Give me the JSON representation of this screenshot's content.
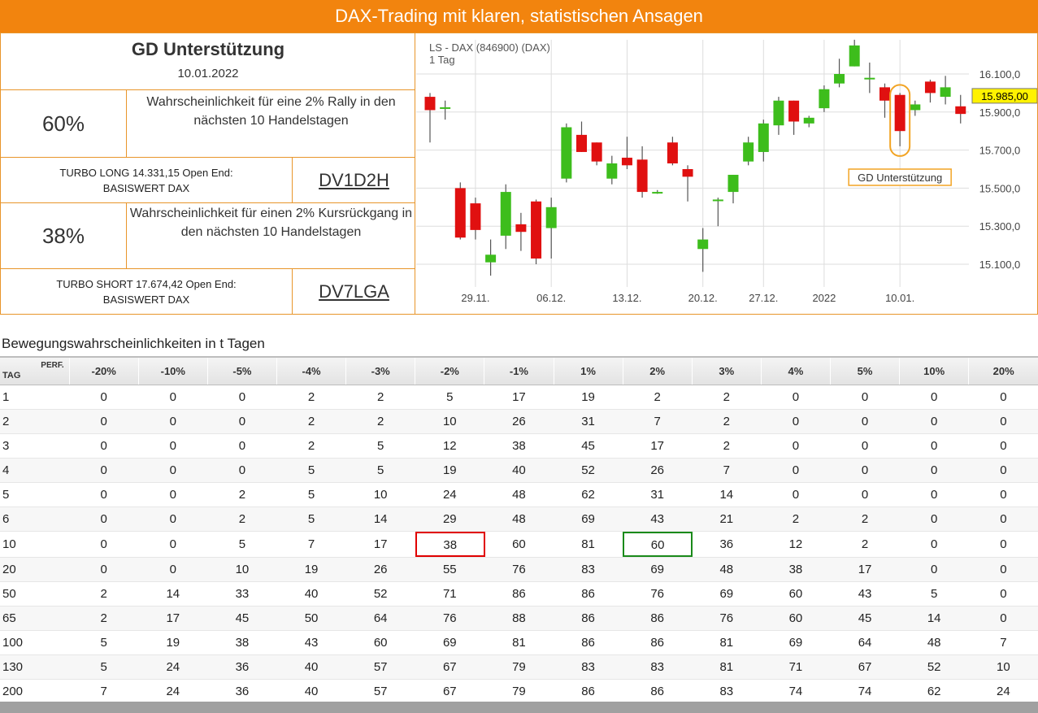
{
  "banner": {
    "title": "DAX-Trading mit klaren, statistischen Ansagen"
  },
  "panel": {
    "title": "GD Unterstützung",
    "date": "10.01.2022",
    "long": {
      "percent": "60%",
      "description": "Wahrscheinlichkeit für eine 2% Rally in den nächsten 10 Handelstagen",
      "product_line1": "TURBO LONG 14.331,15 Open End:",
      "product_line2": "BASISWERT DAX",
      "wkn": "DV1D2H"
    },
    "short": {
      "percent": "38%",
      "description": "Wahrscheinlichkeit für einen 2% Kursrückgang in den nächsten 10 Handelstagen",
      "product_line1": "TURBO SHORT 17.674,42 Open End:",
      "product_line2": "BASISWERT DAX",
      "wkn": "DV7LGA"
    }
  },
  "chart_data": {
    "type": "candlestick",
    "title": "LS - DAX (846900) (DAX)",
    "subtitle": "1 Tag",
    "ylim": [
      14950,
      16280
    ],
    "y_ticks": [
      15100,
      15300,
      15500,
      15700,
      15900,
      16100
    ],
    "y_tick_labels": [
      "15.100,0",
      "15.300,0",
      "15.500,0",
      "15.700,0",
      "15.900,0",
      "16.100,0"
    ],
    "x_tick_labels": [
      {
        "label": "29.11.",
        "index": 3
      },
      {
        "label": "06.12.",
        "index": 8
      },
      {
        "label": "13.12.",
        "index": 13
      },
      {
        "label": "20.12.",
        "index": 18
      },
      {
        "label": "27.12.",
        "index": 22
      },
      {
        "label": "2022",
        "index": 26
      },
      {
        "label": "10.01.",
        "index": 31
      }
    ],
    "current_price_label": "15.985,00",
    "current_price": 15985,
    "annotation": {
      "label": "GD Unterstützung",
      "index": 31
    },
    "colors": {
      "up": "#3dbd1c",
      "down": "#e01010",
      "annotation": "#f2a424",
      "price_tag": "#fff200"
    },
    "candles": [
      {
        "o": 15980,
        "h": 16000,
        "l": 15740,
        "c": 15910
      },
      {
        "o": 15925,
        "h": 15960,
        "l": 15860,
        "c": 15925
      },
      {
        "o": 15500,
        "h": 15530,
        "l": 15230,
        "c": 15240
      },
      {
        "o": 15420,
        "h": 15450,
        "l": 15230,
        "c": 15280
      },
      {
        "o": 15110,
        "h": 15230,
        "l": 15040,
        "c": 15150
      },
      {
        "o": 15250,
        "h": 15520,
        "l": 15180,
        "c": 15480
      },
      {
        "o": 15310,
        "h": 15370,
        "l": 15170,
        "c": 15270
      },
      {
        "o": 15430,
        "h": 15440,
        "l": 15100,
        "c": 15130
      },
      {
        "o": 15290,
        "h": 15450,
        "l": 15130,
        "c": 15400
      },
      {
        "o": 15550,
        "h": 15840,
        "l": 15530,
        "c": 15820
      },
      {
        "o": 15780,
        "h": 15850,
        "l": 15690,
        "c": 15690
      },
      {
        "o": 15740,
        "h": 15740,
        "l": 15620,
        "c": 15640
      },
      {
        "o": 15550,
        "h": 15670,
        "l": 15520,
        "c": 15630
      },
      {
        "o": 15660,
        "h": 15770,
        "l": 15600,
        "c": 15620
      },
      {
        "o": 15650,
        "h": 15720,
        "l": 15450,
        "c": 15480
      },
      {
        "o": 15480,
        "h": 15490,
        "l": 15470,
        "c": 15480
      },
      {
        "o": 15740,
        "h": 15770,
        "l": 15620,
        "c": 15630
      },
      {
        "o": 15600,
        "h": 15620,
        "l": 15430,
        "c": 15560
      },
      {
        "o": 15180,
        "h": 15290,
        "l": 15060,
        "c": 15230
      },
      {
        "o": 15440,
        "h": 15450,
        "l": 15300,
        "c": 15440
      },
      {
        "o": 15480,
        "h": 15570,
        "l": 15420,
        "c": 15570
      },
      {
        "o": 15640,
        "h": 15770,
        "l": 15620,
        "c": 15740
      },
      {
        "o": 15690,
        "h": 15860,
        "l": 15640,
        "c": 15840
      },
      {
        "o": 15830,
        "h": 15980,
        "l": 15780,
        "c": 15960
      },
      {
        "o": 15960,
        "h": 15960,
        "l": 15780,
        "c": 15850
      },
      {
        "o": 15840,
        "h": 15880,
        "l": 15820,
        "c": 15870
      },
      {
        "o": 15920,
        "h": 16040,
        "l": 15900,
        "c": 16020
      },
      {
        "o": 16050,
        "h": 16180,
        "l": 16030,
        "c": 16100
      },
      {
        "o": 16140,
        "h": 16280,
        "l": 16140,
        "c": 16250
      },
      {
        "o": 16080,
        "h": 16160,
        "l": 16000,
        "c": 16080
      },
      {
        "o": 16030,
        "h": 16050,
        "l": 15870,
        "c": 15960
      },
      {
        "o": 15990,
        "h": 16000,
        "l": 15720,
        "c": 15800
      },
      {
        "o": 15910,
        "h": 15960,
        "l": 15880,
        "c": 15940
      },
      {
        "o": 16060,
        "h": 16070,
        "l": 15950,
        "c": 16000
      },
      {
        "o": 15980,
        "h": 16090,
        "l": 15940,
        "c": 16030
      },
      {
        "o": 15930,
        "h": 15990,
        "l": 15840,
        "c": 15890
      }
    ]
  },
  "prob_table": {
    "caption": "Bewegungswahrscheinlichkeiten in t Tagen",
    "corner_col": "PERF.",
    "corner_row": "TAG",
    "columns": [
      "-20%",
      "-10%",
      "-5%",
      "-4%",
      "-3%",
      "-2%",
      "-1%",
      "1%",
      "2%",
      "3%",
      "4%",
      "5%",
      "10%",
      "20%"
    ],
    "rows": [
      {
        "tag": "1",
        "values": [
          "0",
          "0",
          "0",
          "2",
          "2",
          "5",
          "17",
          "19",
          "2",
          "2",
          "0",
          "0",
          "0",
          "0"
        ]
      },
      {
        "tag": "2",
        "values": [
          "0",
          "0",
          "0",
          "2",
          "2",
          "10",
          "26",
          "31",
          "7",
          "2",
          "0",
          "0",
          "0",
          "0"
        ]
      },
      {
        "tag": "3",
        "values": [
          "0",
          "0",
          "0",
          "2",
          "5",
          "12",
          "38",
          "45",
          "17",
          "2",
          "0",
          "0",
          "0",
          "0"
        ]
      },
      {
        "tag": "4",
        "values": [
          "0",
          "0",
          "0",
          "5",
          "5",
          "19",
          "40",
          "52",
          "26",
          "7",
          "0",
          "0",
          "0",
          "0"
        ]
      },
      {
        "tag": "5",
        "values": [
          "0",
          "0",
          "2",
          "5",
          "10",
          "24",
          "48",
          "62",
          "31",
          "14",
          "0",
          "0",
          "0",
          "0"
        ]
      },
      {
        "tag": "6",
        "values": [
          "0",
          "0",
          "2",
          "5",
          "14",
          "29",
          "48",
          "69",
          "43",
          "21",
          "2",
          "2",
          "0",
          "0"
        ]
      },
      {
        "tag": "10",
        "values": [
          "0",
          "0",
          "5",
          "7",
          "17",
          "38",
          "60",
          "81",
          "60",
          "36",
          "12",
          "2",
          "0",
          "0"
        ]
      },
      {
        "tag": "20",
        "values": [
          "0",
          "0",
          "10",
          "19",
          "26",
          "55",
          "76",
          "83",
          "69",
          "48",
          "38",
          "17",
          "0",
          "0"
        ]
      },
      {
        "tag": "50",
        "values": [
          "2",
          "14",
          "33",
          "40",
          "52",
          "71",
          "86",
          "86",
          "76",
          "69",
          "60",
          "43",
          "5",
          "0"
        ]
      },
      {
        "tag": "65",
        "values": [
          "2",
          "17",
          "45",
          "50",
          "64",
          "76",
          "88",
          "86",
          "86",
          "76",
          "60",
          "45",
          "14",
          "0"
        ]
      },
      {
        "tag": "100",
        "values": [
          "5",
          "19",
          "38",
          "43",
          "60",
          "69",
          "81",
          "86",
          "86",
          "81",
          "69",
          "64",
          "48",
          "7"
        ]
      },
      {
        "tag": "130",
        "values": [
          "5",
          "24",
          "36",
          "40",
          "57",
          "67",
          "79",
          "83",
          "83",
          "81",
          "71",
          "67",
          "52",
          "10"
        ]
      },
      {
        "tag": "200",
        "values": [
          "7",
          "24",
          "36",
          "40",
          "57",
          "67",
          "79",
          "86",
          "86",
          "83",
          "74",
          "74",
          "62",
          "24"
        ]
      }
    ],
    "highlights": [
      {
        "row": 6,
        "col": 5,
        "color": "#e00000"
      },
      {
        "row": 6,
        "col": 8,
        "color": "#1a8a1a"
      }
    ]
  }
}
